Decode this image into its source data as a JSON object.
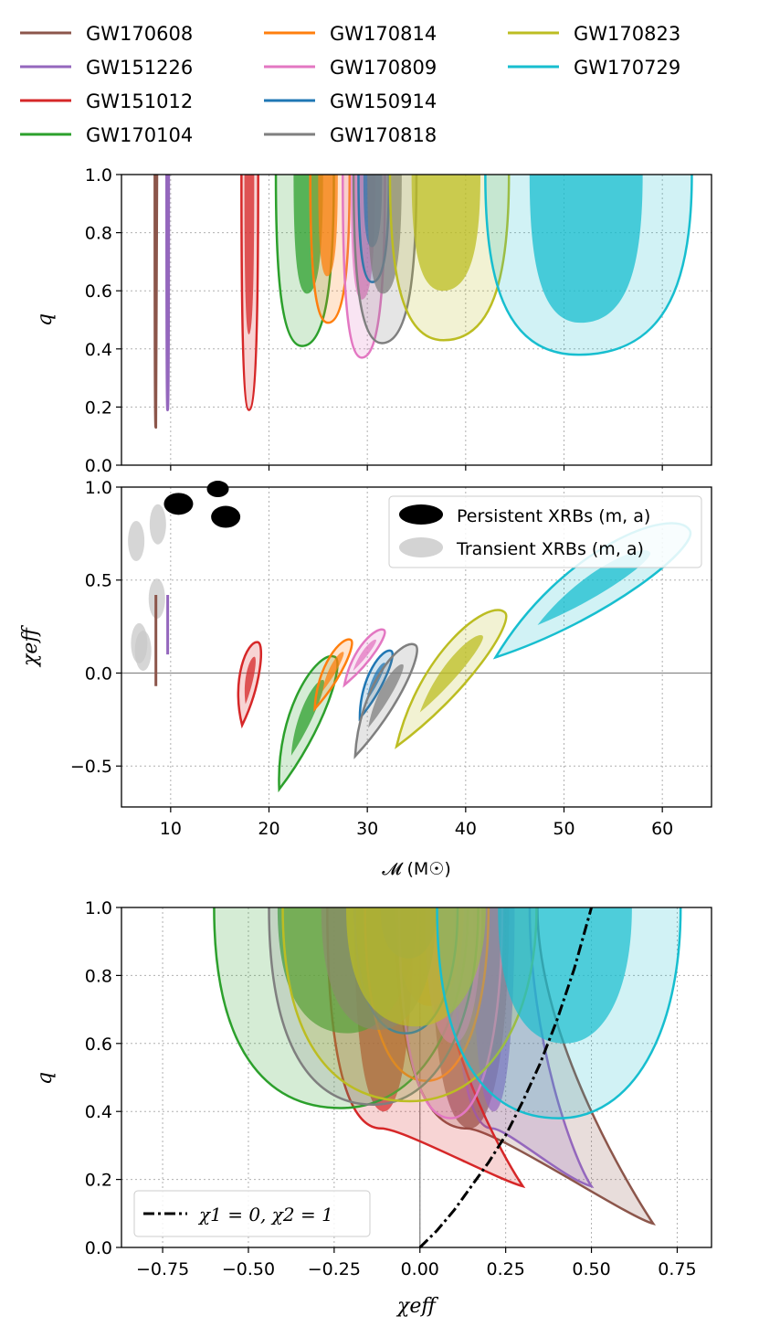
{
  "events": [
    {
      "name": "GW170608",
      "color": "#8c564b"
    },
    {
      "name": "GW151226",
      "color": "#9467bd"
    },
    {
      "name": "GW151012",
      "color": "#d62728"
    },
    {
      "name": "GW170104",
      "color": "#2ca02c"
    },
    {
      "name": "GW170814",
      "color": "#ff7f0e"
    },
    {
      "name": "GW170809",
      "color": "#e377c2"
    },
    {
      "name": "GW150914",
      "color": "#1f77b4"
    },
    {
      "name": "GW170818",
      "color": "#7f7f7f"
    },
    {
      "name": "GW170823",
      "color": "#bcbd22"
    },
    {
      "name": "GW170729",
      "color": "#17becf"
    }
  ],
  "chart_data": [
    {
      "type": "scatter",
      "panel": "top",
      "title": "",
      "xlabel": "",
      "ylabel": "q",
      "xlim": [
        5,
        65
      ],
      "ylim": [
        0.0,
        1.0
      ],
      "xticks": [
        10,
        20,
        30,
        40,
        50,
        60
      ],
      "yticks": [
        "0.0",
        "0.2",
        "0.4",
        "0.6",
        "0.8",
        "1.0"
      ],
      "grid": true,
      "contours": [
        {
          "event": "GW170608",
          "x90": [
            8.4,
            8.6
          ],
          "y_min90": 0.13,
          "x50": [
            8.45,
            8.55
          ],
          "y_min50": 0.3
        },
        {
          "event": "GW151226",
          "x90": [
            9.6,
            9.8
          ],
          "y_min90": 0.19,
          "x50": [
            9.65,
            9.75
          ],
          "y_min50": 0.4
        },
        {
          "event": "GW151012",
          "x90": [
            17.2,
            18.9
          ],
          "y_min90": 0.19,
          "x50": [
            17.5,
            18.5
          ],
          "y_min50": 0.45
        },
        {
          "event": "GW170104",
          "x90": [
            20.7,
            26.6
          ],
          "y_min90": 0.41,
          "x50": [
            22.5,
            25.5
          ],
          "y_min50": 0.59
        },
        {
          "event": "GW170814",
          "x90": [
            24.2,
            28.2
          ],
          "y_min90": 0.49,
          "x50": [
            25.0,
            27.0
          ],
          "y_min50": 0.65
        },
        {
          "event": "GW170809",
          "x90": [
            27.5,
            31.8
          ],
          "y_min90": 0.37,
          "x50": [
            28.3,
            30.8
          ],
          "y_min50": 0.57
        },
        {
          "event": "GW150914",
          "x90": [
            29.1,
            32.2
          ],
          "y_min90": 0.63,
          "x50": [
            29.6,
            31.5
          ],
          "y_min50": 0.75
        },
        {
          "event": "GW170818",
          "x90": [
            28.6,
            35.0
          ],
          "y_min90": 0.42,
          "x50": [
            30.0,
            33.5
          ],
          "y_min50": 0.59
        },
        {
          "event": "GW170823",
          "x90": [
            32.3,
            44.4
          ],
          "y_min90": 0.43,
          "x50": [
            34.5,
            41.5
          ],
          "y_min50": 0.6
        },
        {
          "event": "GW170729",
          "x90": [
            42.0,
            63.0
          ],
          "y_min90": 0.38,
          "x50": [
            46.5,
            58.0
          ],
          "y_min50": 0.49
        }
      ]
    },
    {
      "type": "scatter",
      "panel": "middle",
      "title": "",
      "xlabel": "𝓜 (M☉)",
      "ylabel": "χeff",
      "xlim": [
        5,
        65
      ],
      "ylim": [
        -0.72,
        1.0
      ],
      "xticks": [
        10,
        20,
        30,
        40,
        50,
        60
      ],
      "yticks": [
        "−0.5",
        "0.0",
        "0.5",
        "1.0"
      ],
      "ytick_values": [
        -0.5,
        0.0,
        0.5,
        1.0
      ],
      "grid": true,
      "legend": {
        "location": "top-right",
        "entries": [
          "Persistent XRBs (m, a)",
          "Transient XRBs (m, a)"
        ]
      },
      "persistent_xrbs": [
        {
          "m": 10.8,
          "a": 0.91
        },
        {
          "m": 14.8,
          "a": 0.99
        },
        {
          "m": 15.6,
          "a": 0.84
        }
      ],
      "transient_xrbs": [
        {
          "m": 6.5,
          "a": 0.71
        },
        {
          "m": 8.7,
          "a": 0.8
        },
        {
          "m": 6.8,
          "a": 0.16
        },
        {
          "m": 7.2,
          "a": 0.12
        },
        {
          "m": 8.6,
          "a": 0.4
        }
      ],
      "contours": [
        {
          "event": "GW170608",
          "m_range": [
            8.4,
            8.6
          ],
          "chi_range": [
            -0.07,
            0.42
          ]
        },
        {
          "event": "GW151226",
          "m_range": [
            9.6,
            9.8
          ],
          "chi_range": [
            0.1,
            0.42
          ]
        },
        {
          "event": "GW151012",
          "m_range": [
            17.2,
            18.9
          ],
          "chi_range": [
            -0.29,
            0.18
          ]
        },
        {
          "event": "GW170104",
          "m_range": [
            20.8,
            26.8
          ],
          "chi_range": [
            -0.64,
            0.11
          ]
        },
        {
          "event": "GW170814",
          "m_range": [
            24.5,
            28.4
          ],
          "chi_range": [
            -0.2,
            0.19
          ]
        },
        {
          "event": "GW170809",
          "m_range": [
            27.5,
            31.8
          ],
          "chi_range": [
            -0.07,
            0.24
          ]
        },
        {
          "event": "GW150914",
          "m_range": [
            29.1,
            32.5
          ],
          "chi_range": [
            -0.25,
            0.13
          ]
        },
        {
          "event": "GW170818",
          "m_range": [
            28.5,
            35.0
          ],
          "chi_range": [
            -0.46,
            0.17
          ]
        },
        {
          "event": "GW170823",
          "m_range": [
            32.5,
            44.2
          ],
          "chi_range": [
            -0.41,
            0.35
          ]
        },
        {
          "event": "GW170729",
          "m_range": [
            42.2,
            63.2
          ],
          "chi_range": [
            0.07,
            0.79
          ]
        }
      ]
    },
    {
      "type": "scatter",
      "panel": "bottom",
      "title": "",
      "xlabel": "χeff",
      "ylabel": "q",
      "xlim": [
        -0.87,
        0.85
      ],
      "ylim": [
        0.0,
        1.0
      ],
      "xticks": [
        "−0.75",
        "−0.50",
        "−0.25",
        "0.00",
        "0.25",
        "0.50",
        "0.75"
      ],
      "xtick_values": [
        -0.75,
        -0.5,
        -0.25,
        0.0,
        0.25,
        0.5,
        0.75
      ],
      "yticks": [
        "0.0",
        "0.2",
        "0.4",
        "0.6",
        "0.8",
        "1.0"
      ],
      "grid": true,
      "legend": {
        "location": "bottom-left",
        "entries": [
          "χ1 = 0, χ2 = 1"
        ]
      },
      "reference_curve": {
        "label": "χ1 = 0, χ2 = 1",
        "points": [
          [
            0.0,
            0.0
          ],
          [
            0.05,
            0.05
          ],
          [
            0.1,
            0.11
          ],
          [
            0.15,
            0.18
          ],
          [
            0.2,
            0.25
          ],
          [
            0.25,
            0.33
          ],
          [
            0.3,
            0.43
          ],
          [
            0.35,
            0.54
          ],
          [
            0.4,
            0.67
          ],
          [
            0.45,
            0.82
          ],
          [
            0.5,
            1.0
          ]
        ]
      },
      "contours": [
        {
          "event": "GW170608",
          "chi_range": [
            -0.07,
            0.68
          ],
          "q_min90": 0.07
        },
        {
          "event": "GW151226",
          "chi_range": [
            0.1,
            0.5
          ],
          "q_min90": 0.18
        },
        {
          "event": "GW151012",
          "chi_range": [
            -0.27,
            0.3
          ],
          "q_min90": 0.18
        },
        {
          "event": "GW170104",
          "chi_range": [
            -0.6,
            0.14
          ],
          "q_min90": 0.41
        },
        {
          "event": "GW170814",
          "chi_range": [
            -0.16,
            0.2
          ],
          "q_min90": 0.49
        },
        {
          "event": "GW170809",
          "chi_range": [
            -0.06,
            0.24
          ],
          "q_min90": 0.38
        },
        {
          "event": "GW150914",
          "chi_range": [
            -0.19,
            0.11
          ],
          "q_min90": 0.63
        },
        {
          "event": "GW170818",
          "chi_range": [
            -0.44,
            0.17
          ],
          "q_min90": 0.42
        },
        {
          "event": "GW170823",
          "chi_range": [
            -0.4,
            0.34
          ],
          "q_min90": 0.43
        },
        {
          "event": "GW170729",
          "chi_range": [
            0.05,
            0.76
          ],
          "q_min90": 0.38
        }
      ]
    }
  ]
}
